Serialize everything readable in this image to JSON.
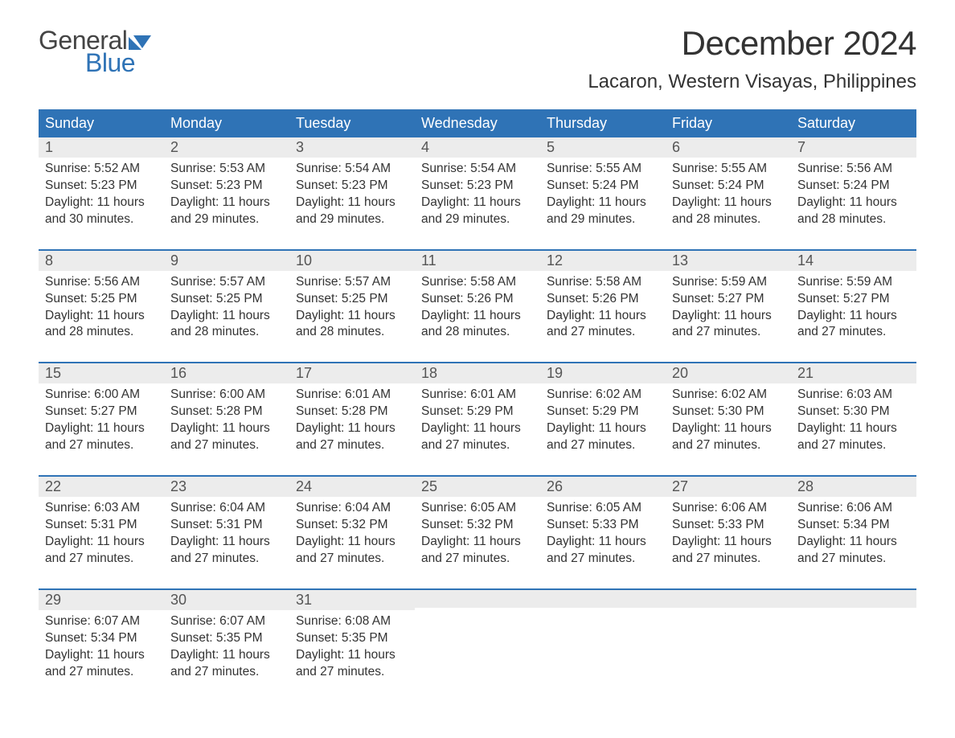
{
  "brand": {
    "word1": "General",
    "word2": "Blue",
    "word1_color": "#444444",
    "word2_color": "#2f73b6",
    "flag_colors": [
      "#2f73b6",
      "#6aa7d8"
    ]
  },
  "title": "December 2024",
  "location": "Lacaron, Western Visayas, Philippines",
  "colors": {
    "header_bg": "#2f73b6",
    "header_text": "#ffffff",
    "daynum_bg": "#ececec",
    "row_border": "#2f73b6",
    "body_text": "#333333",
    "daynum_text": "#555555",
    "background": "#ffffff"
  },
  "fonts": {
    "title_size": 42,
    "location_size": 24,
    "weekday_size": 18,
    "daynum_size": 18,
    "body_size": 15.5
  },
  "weekdays": [
    "Sunday",
    "Monday",
    "Tuesday",
    "Wednesday",
    "Thursday",
    "Friday",
    "Saturday"
  ],
  "weeks": [
    [
      {
        "day": "1",
        "sunrise": "Sunrise: 5:52 AM",
        "sunset": "Sunset: 5:23 PM",
        "dl1": "Daylight: 11 hours",
        "dl2": "and 30 minutes."
      },
      {
        "day": "2",
        "sunrise": "Sunrise: 5:53 AM",
        "sunset": "Sunset: 5:23 PM",
        "dl1": "Daylight: 11 hours",
        "dl2": "and 29 minutes."
      },
      {
        "day": "3",
        "sunrise": "Sunrise: 5:54 AM",
        "sunset": "Sunset: 5:23 PM",
        "dl1": "Daylight: 11 hours",
        "dl2": "and 29 minutes."
      },
      {
        "day": "4",
        "sunrise": "Sunrise: 5:54 AM",
        "sunset": "Sunset: 5:23 PM",
        "dl1": "Daylight: 11 hours",
        "dl2": "and 29 minutes."
      },
      {
        "day": "5",
        "sunrise": "Sunrise: 5:55 AM",
        "sunset": "Sunset: 5:24 PM",
        "dl1": "Daylight: 11 hours",
        "dl2": "and 29 minutes."
      },
      {
        "day": "6",
        "sunrise": "Sunrise: 5:55 AM",
        "sunset": "Sunset: 5:24 PM",
        "dl1": "Daylight: 11 hours",
        "dl2": "and 28 minutes."
      },
      {
        "day": "7",
        "sunrise": "Sunrise: 5:56 AM",
        "sunset": "Sunset: 5:24 PM",
        "dl1": "Daylight: 11 hours",
        "dl2": "and 28 minutes."
      }
    ],
    [
      {
        "day": "8",
        "sunrise": "Sunrise: 5:56 AM",
        "sunset": "Sunset: 5:25 PM",
        "dl1": "Daylight: 11 hours",
        "dl2": "and 28 minutes."
      },
      {
        "day": "9",
        "sunrise": "Sunrise: 5:57 AM",
        "sunset": "Sunset: 5:25 PM",
        "dl1": "Daylight: 11 hours",
        "dl2": "and 28 minutes."
      },
      {
        "day": "10",
        "sunrise": "Sunrise: 5:57 AM",
        "sunset": "Sunset: 5:25 PM",
        "dl1": "Daylight: 11 hours",
        "dl2": "and 28 minutes."
      },
      {
        "day": "11",
        "sunrise": "Sunrise: 5:58 AM",
        "sunset": "Sunset: 5:26 PM",
        "dl1": "Daylight: 11 hours",
        "dl2": "and 28 minutes."
      },
      {
        "day": "12",
        "sunrise": "Sunrise: 5:58 AM",
        "sunset": "Sunset: 5:26 PM",
        "dl1": "Daylight: 11 hours",
        "dl2": "and 27 minutes."
      },
      {
        "day": "13",
        "sunrise": "Sunrise: 5:59 AM",
        "sunset": "Sunset: 5:27 PM",
        "dl1": "Daylight: 11 hours",
        "dl2": "and 27 minutes."
      },
      {
        "day": "14",
        "sunrise": "Sunrise: 5:59 AM",
        "sunset": "Sunset: 5:27 PM",
        "dl1": "Daylight: 11 hours",
        "dl2": "and 27 minutes."
      }
    ],
    [
      {
        "day": "15",
        "sunrise": "Sunrise: 6:00 AM",
        "sunset": "Sunset: 5:27 PM",
        "dl1": "Daylight: 11 hours",
        "dl2": "and 27 minutes."
      },
      {
        "day": "16",
        "sunrise": "Sunrise: 6:00 AM",
        "sunset": "Sunset: 5:28 PM",
        "dl1": "Daylight: 11 hours",
        "dl2": "and 27 minutes."
      },
      {
        "day": "17",
        "sunrise": "Sunrise: 6:01 AM",
        "sunset": "Sunset: 5:28 PM",
        "dl1": "Daylight: 11 hours",
        "dl2": "and 27 minutes."
      },
      {
        "day": "18",
        "sunrise": "Sunrise: 6:01 AM",
        "sunset": "Sunset: 5:29 PM",
        "dl1": "Daylight: 11 hours",
        "dl2": "and 27 minutes."
      },
      {
        "day": "19",
        "sunrise": "Sunrise: 6:02 AM",
        "sunset": "Sunset: 5:29 PM",
        "dl1": "Daylight: 11 hours",
        "dl2": "and 27 minutes."
      },
      {
        "day": "20",
        "sunrise": "Sunrise: 6:02 AM",
        "sunset": "Sunset: 5:30 PM",
        "dl1": "Daylight: 11 hours",
        "dl2": "and 27 minutes."
      },
      {
        "day": "21",
        "sunrise": "Sunrise: 6:03 AM",
        "sunset": "Sunset: 5:30 PM",
        "dl1": "Daylight: 11 hours",
        "dl2": "and 27 minutes."
      }
    ],
    [
      {
        "day": "22",
        "sunrise": "Sunrise: 6:03 AM",
        "sunset": "Sunset: 5:31 PM",
        "dl1": "Daylight: 11 hours",
        "dl2": "and 27 minutes."
      },
      {
        "day": "23",
        "sunrise": "Sunrise: 6:04 AM",
        "sunset": "Sunset: 5:31 PM",
        "dl1": "Daylight: 11 hours",
        "dl2": "and 27 minutes."
      },
      {
        "day": "24",
        "sunrise": "Sunrise: 6:04 AM",
        "sunset": "Sunset: 5:32 PM",
        "dl1": "Daylight: 11 hours",
        "dl2": "and 27 minutes."
      },
      {
        "day": "25",
        "sunrise": "Sunrise: 6:05 AM",
        "sunset": "Sunset: 5:32 PM",
        "dl1": "Daylight: 11 hours",
        "dl2": "and 27 minutes."
      },
      {
        "day": "26",
        "sunrise": "Sunrise: 6:05 AM",
        "sunset": "Sunset: 5:33 PM",
        "dl1": "Daylight: 11 hours",
        "dl2": "and 27 minutes."
      },
      {
        "day": "27",
        "sunrise": "Sunrise: 6:06 AM",
        "sunset": "Sunset: 5:33 PM",
        "dl1": "Daylight: 11 hours",
        "dl2": "and 27 minutes."
      },
      {
        "day": "28",
        "sunrise": "Sunrise: 6:06 AM",
        "sunset": "Sunset: 5:34 PM",
        "dl1": "Daylight: 11 hours",
        "dl2": "and 27 minutes."
      }
    ],
    [
      {
        "day": "29",
        "sunrise": "Sunrise: 6:07 AM",
        "sunset": "Sunset: 5:34 PM",
        "dl1": "Daylight: 11 hours",
        "dl2": "and 27 minutes."
      },
      {
        "day": "30",
        "sunrise": "Sunrise: 6:07 AM",
        "sunset": "Sunset: 5:35 PM",
        "dl1": "Daylight: 11 hours",
        "dl2": "and 27 minutes."
      },
      {
        "day": "31",
        "sunrise": "Sunrise: 6:08 AM",
        "sunset": "Sunset: 5:35 PM",
        "dl1": "Daylight: 11 hours",
        "dl2": "and 27 minutes."
      },
      null,
      null,
      null,
      null
    ]
  ]
}
